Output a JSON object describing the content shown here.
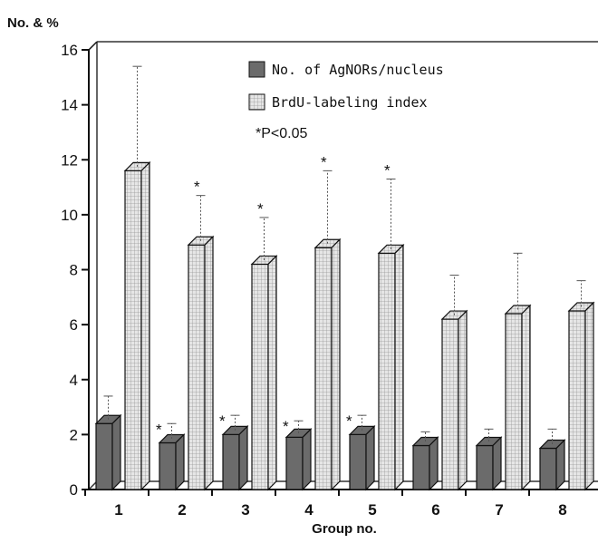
{
  "chart_data": {
    "type": "bar",
    "title": "",
    "ylabel": "No. & %",
    "xlabel": "Group no.",
    "ylim": [
      0,
      16
    ],
    "yticks": [
      0,
      2,
      4,
      6,
      8,
      10,
      12,
      14,
      16
    ],
    "categories": [
      "1",
      "2",
      "3",
      "4",
      "5",
      "6",
      "7",
      "8"
    ],
    "series": [
      {
        "name": "No. of AgNORs/nucleus",
        "color": "#6b6b6b",
        "values": [
          2.4,
          1.7,
          2.0,
          1.9,
          2.0,
          1.6,
          1.6,
          1.5
        ],
        "error": [
          1.0,
          0.7,
          0.7,
          0.6,
          0.7,
          0.5,
          0.6,
          0.7
        ],
        "significant": [
          false,
          true,
          true,
          true,
          true,
          false,
          false,
          false
        ]
      },
      {
        "name": "BrdU-labeling index",
        "color": "#dcdcdc",
        "values": [
          11.6,
          8.9,
          8.2,
          8.8,
          8.6,
          6.2,
          6.4,
          6.5
        ],
        "error": [
          3.8,
          1.8,
          1.7,
          2.8,
          2.7,
          1.6,
          2.2,
          1.1
        ],
        "significant": [
          false,
          true,
          true,
          true,
          true,
          false,
          false,
          false
        ]
      }
    ],
    "annotation": "*P<0.05",
    "significance_marker": "*",
    "legend_position": "top-center",
    "grid": false
  }
}
